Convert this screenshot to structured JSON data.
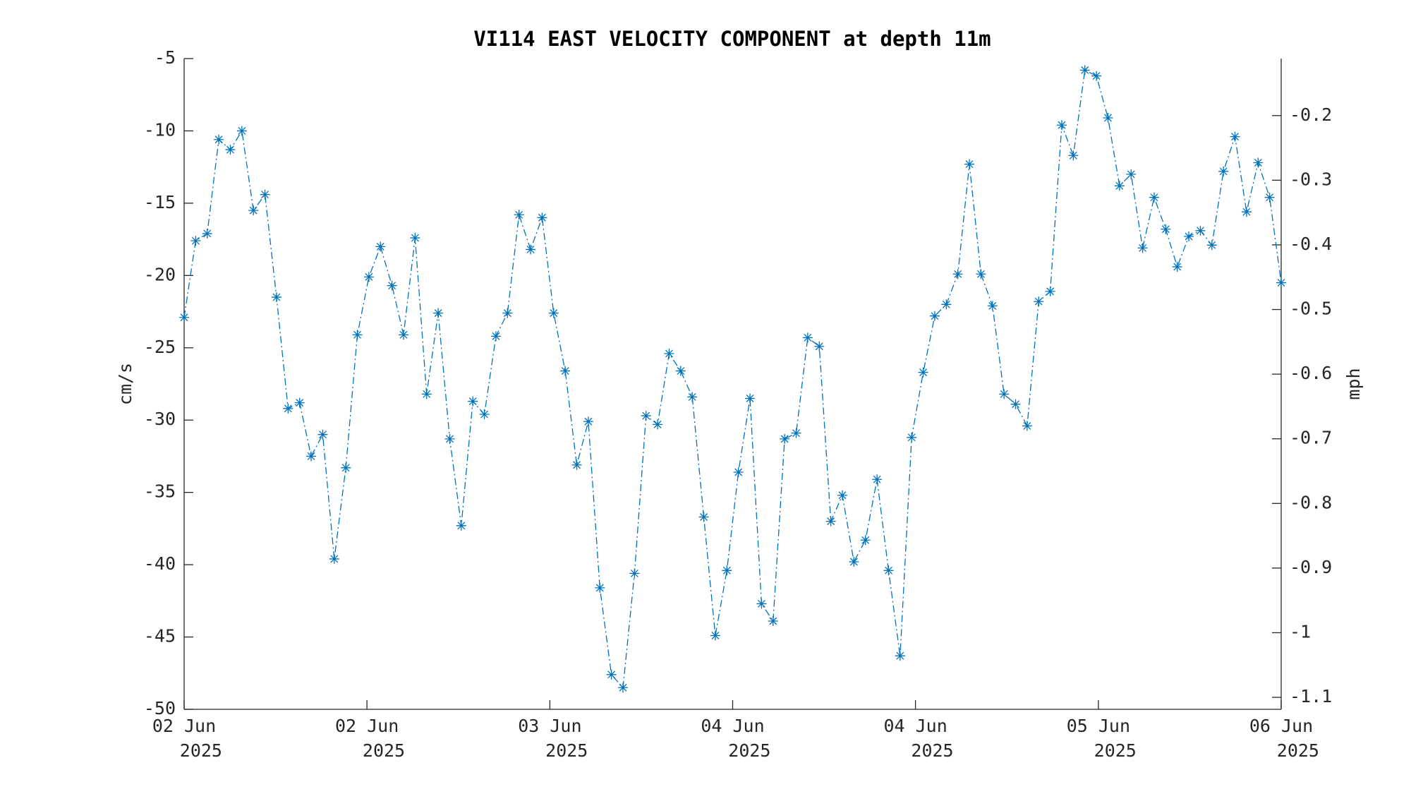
{
  "chart_data": {
    "type": "line",
    "title": "VI114 EAST VELOCITY COMPONENT at depth 11m",
    "ylabel": "cm/s",
    "y2label": "mph",
    "x": [
      0,
      1,
      2,
      3,
      4,
      5,
      6,
      7,
      8,
      9,
      10,
      11,
      12,
      13,
      14,
      15,
      16,
      17,
      18,
      19,
      20,
      21,
      22,
      23,
      24,
      25,
      26,
      27,
      28,
      29,
      30,
      31,
      32,
      33,
      34,
      35,
      36,
      37,
      38,
      39,
      40,
      41,
      42,
      43,
      44,
      45,
      46,
      47,
      48,
      49,
      50,
      51,
      52,
      53,
      54,
      55,
      56,
      57,
      58,
      59,
      60,
      61,
      62,
      63,
      64,
      65,
      66,
      67,
      68,
      69,
      70,
      71,
      72,
      73,
      74,
      75,
      76,
      77,
      78,
      79,
      80,
      81,
      82,
      83,
      84,
      85,
      86,
      87,
      88,
      89,
      90,
      91,
      92,
      93,
      94,
      95
    ],
    "series": [
      {
        "color": "#0072bd",
        "values": [
          -22.9,
          -17.6,
          -17.1,
          -10.6,
          -11.3,
          -10.0,
          -15.5,
          -14.4,
          -21.5,
          -29.2,
          -28.8,
          -32.5,
          -31.0,
          -39.6,
          -33.3,
          -24.1,
          -20.1,
          -18.0,
          -20.7,
          -24.1,
          -17.4,
          -28.2,
          -22.6,
          -31.3,
          -37.3,
          -28.7,
          -29.6,
          -24.2,
          -22.6,
          -15.8,
          -18.2,
          -16.0,
          -22.6,
          -26.6,
          -33.1,
          -30.1,
          -41.6,
          -47.6,
          -48.5,
          -40.6,
          -29.7,
          -30.3,
          -25.4,
          -26.6,
          -28.4,
          -36.7,
          -44.9,
          -40.4,
          -33.6,
          -28.5,
          -42.7,
          -43.9,
          -31.3,
          -30.9,
          -24.3,
          -24.9,
          -37.0,
          -35.2,
          -39.8,
          -38.3,
          -34.1,
          -40.4,
          -46.3,
          -31.2,
          -26.7,
          -22.8,
          -22.0,
          -19.9,
          -12.3,
          -19.9,
          -22.1,
          -28.2,
          -28.9,
          -30.4,
          -21.8,
          -21.1,
          -9.6,
          -11.7,
          -5.8,
          -6.2,
          -9.1,
          -13.8,
          -13.0,
          -18.1,
          -14.6,
          -16.8,
          -19.4,
          -17.3,
          -16.9,
          -17.9,
          -12.8,
          -10.4,
          -15.6,
          -12.2,
          -14.6,
          -20.5
        ]
      }
    ],
    "xlim": [
      0,
      95
    ],
    "xticks": [
      {
        "value": 0,
        "label": "02 Jun",
        "sublabel": "2025"
      },
      {
        "value": 15.83,
        "label": "02 Jun",
        "sublabel": "2025"
      },
      {
        "value": 31.67,
        "label": "03 Jun",
        "sublabel": "2025"
      },
      {
        "value": 47.5,
        "label": "04 Jun",
        "sublabel": "2025"
      },
      {
        "value": 63.33,
        "label": "04 Jun",
        "sublabel": "2025"
      },
      {
        "value": 79.17,
        "label": "05 Jun",
        "sublabel": "2025"
      },
      {
        "value": 95,
        "label": "06 Jun",
        "sublabel": "2025"
      }
    ],
    "ylim": [
      -50,
      -5
    ],
    "yticks": [
      -50,
      -45,
      -40,
      -35,
      -30,
      -25,
      -20,
      -15,
      -10,
      -5
    ],
    "y2lim": [
      -1.1185,
      -0.1118
    ],
    "y2ticks": [
      -1.1,
      -1,
      -0.9,
      -0.8,
      -0.7,
      -0.6,
      -0.5,
      -0.4,
      -0.3,
      -0.2
    ]
  }
}
